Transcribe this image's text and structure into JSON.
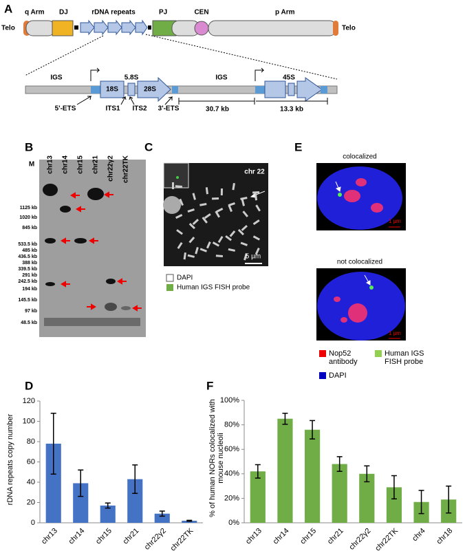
{
  "panel_labels": [
    "A",
    "B",
    "C",
    "D",
    "E",
    "F"
  ],
  "panel_a": {
    "chromosome": {
      "telo_left": "Telo",
      "q_arm": "q Arm",
      "dj": "DJ",
      "rdna": "rDNA repeats",
      "pj": "PJ",
      "cen": "CEN",
      "p_arm": "p Arm",
      "telo_right": "Telo"
    },
    "repeat": {
      "igs_left": "IGS",
      "s58": "5.8S",
      "igs_mid": "IGS",
      "s45": "45S",
      "s18": "18S",
      "s28": "28S",
      "ets5": "5'-ETS",
      "its1": "ITS1",
      "its2": "ITS2",
      "ets3": "3'-ETS",
      "igs_length": "30.7 kb",
      "unit_length": "13.3 kb"
    }
  },
  "panel_b": {
    "lanes": [
      "chr13",
      "chr14",
      "chr15",
      "chr21",
      "chr22γ2",
      "chr22TK"
    ],
    "marker": "M",
    "ladder": [
      "1125 kb",
      "1020 kb",
      "845 kb",
      "533.5 kb",
      "485 kb",
      "436.5 kb",
      "388 kb",
      "339.5 kb",
      "291 kb",
      "242.5 kb",
      "194 kb",
      "145.5 kb",
      "97 kb",
      "48.5 kb"
    ]
  },
  "panel_c": {
    "chromosome": "chr 22",
    "scale": "5 µm",
    "legend": [
      "DAPI",
      "Human IGS FISH probe"
    ]
  },
  "panel_e": {
    "top": "colocalized",
    "bottom": "not colocalized",
    "scales": [
      "1 µm",
      "1 µm"
    ],
    "legend": [
      "Nop52 antibody",
      "Human IGS FISH probe",
      "DAPI"
    ]
  },
  "chart_data": [
    {
      "type": "bar",
      "y_label": "rDNA repeats copy number",
      "categories": [
        "chr13",
        "chr14",
        "chr15",
        "chr21",
        "chr22γ2",
        "chr22TK"
      ],
      "values": [
        78,
        39,
        17,
        43,
        9,
        2
      ],
      "errors": [
        30,
        13,
        2.5,
        14,
        2.5,
        0.5
      ],
      "color": "#4472c4",
      "ylim": [
        0,
        120
      ],
      "yticks": [
        0,
        20,
        40,
        60,
        80,
        100,
        120
      ]
    },
    {
      "type": "bar",
      "y_label": "% of human NORs colocalized with mouse nucleoli",
      "categories": [
        "chr13",
        "chr14",
        "chr15",
        "chr21",
        "chr22γ2",
        "chr22TK",
        "chr4",
        "chr18"
      ],
      "values": [
        42,
        85,
        76,
        48,
        40,
        29,
        17,
        19
      ],
      "errors": [
        5.5,
        4.5,
        7.5,
        6,
        6.5,
        9.5,
        9.5,
        11
      ],
      "color": "#70ad47",
      "ylim": [
        0,
        100
      ],
      "yticks": [
        {
          "value": 0,
          "label": "0%"
        },
        {
          "value": 20,
          "label": "20%"
        },
        {
          "value": 40,
          "label": "40%"
        },
        {
          "value": 60,
          "label": "60%"
        },
        {
          "value": 80,
          "label": "80%"
        },
        {
          "value": 100,
          "label": "100%"
        }
      ]
    }
  ]
}
